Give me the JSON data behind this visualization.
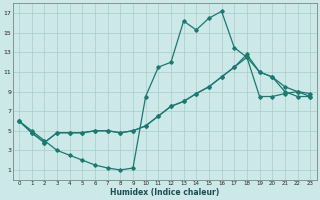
{
  "xlabel": "Humidex (Indice chaleur)",
  "xlim": [
    -0.5,
    23.5
  ],
  "ylim": [
    0,
    18
  ],
  "xticks": [
    0,
    1,
    2,
    3,
    4,
    5,
    6,
    7,
    8,
    9,
    10,
    11,
    12,
    13,
    14,
    15,
    16,
    17,
    18,
    19,
    20,
    21,
    22,
    23
  ],
  "yticks": [
    1,
    3,
    5,
    7,
    9,
    11,
    13,
    15,
    17
  ],
  "bg_color": "#cce8e8",
  "grid_color": "#aacccc",
  "line_color": "#1a7a6e",
  "line1_x": [
    0,
    1,
    2,
    3,
    4,
    5,
    6,
    7,
    8,
    9,
    10,
    11,
    12,
    13,
    14,
    15,
    16,
    17,
    18,
    19,
    20,
    21,
    22,
    23
  ],
  "line1_y": [
    6,
    5,
    4,
    3,
    2.5,
    2,
    1.5,
    1.2,
    1,
    1.2,
    8.5,
    11.5,
    12,
    16.2,
    15.3,
    16.5,
    17.2,
    13.5,
    12.5,
    11,
    10.5,
    9.5,
    9,
    8.5
  ],
  "line2_x": [
    0,
    1,
    2,
    3,
    4,
    5,
    6,
    7,
    8,
    9,
    10,
    11,
    12,
    13,
    14,
    15,
    16,
    17,
    18,
    19,
    20,
    21,
    22,
    23
  ],
  "line2_y": [
    6,
    4.8,
    3.8,
    4.8,
    4.8,
    4.8,
    5,
    5,
    4.8,
    5,
    5.5,
    6.5,
    7.5,
    8,
    8.8,
    9.5,
    10.5,
    11.5,
    12.8,
    11,
    10.5,
    9,
    8.5,
    8.5
  ],
  "line3_x": [
    0,
    1,
    2,
    3,
    4,
    5,
    6,
    7,
    8,
    9,
    10,
    11,
    12,
    13,
    14,
    15,
    16,
    17,
    18,
    19,
    20,
    21,
    22,
    23
  ],
  "line3_y": [
    6,
    4.8,
    3.8,
    4.8,
    4.8,
    4.8,
    5,
    5,
    4.8,
    5,
    5.5,
    6.5,
    7.5,
    8,
    8.8,
    9.5,
    10.5,
    11.5,
    12.5,
    8.5,
    8.5,
    8.8,
    9,
    8.8
  ]
}
